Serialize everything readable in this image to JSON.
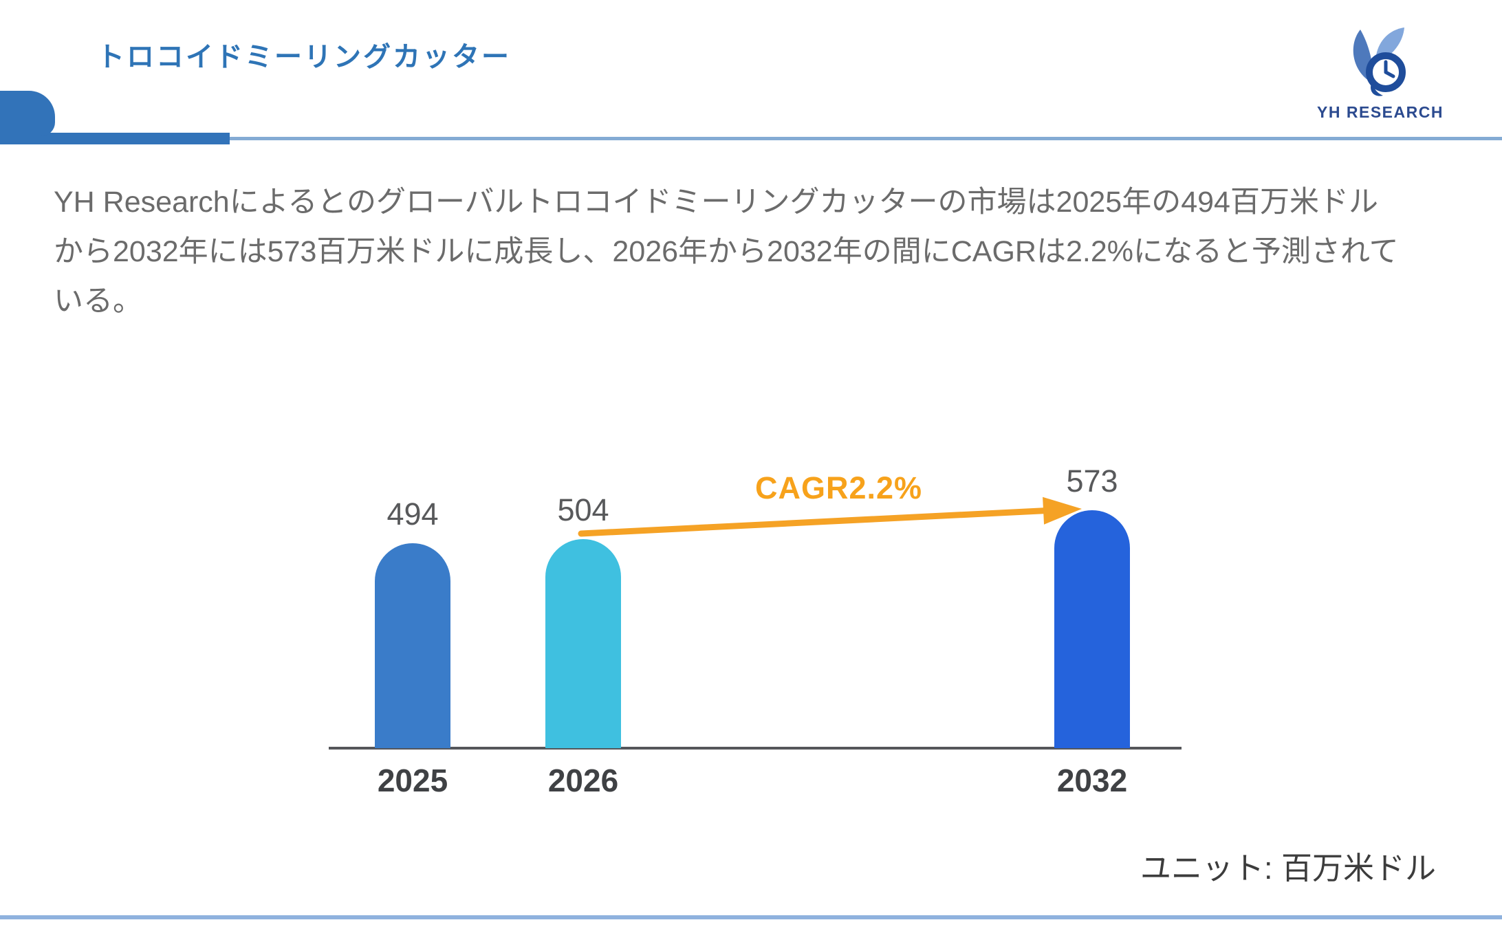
{
  "header": {
    "title": "トロコイドミーリングカッター",
    "logo_text": "YH RESEARCH"
  },
  "summary": {
    "text": "YH Researchによるとのグローバルトロコイドミーリングカッターの市場は2025年の494百万米ドルから2032年には573百万米ドルに成長し、2026年から2032年の間にCAGRは2.2%になると予測されている。"
  },
  "chart_data": {
    "type": "bar",
    "categories": [
      "2025",
      "2026",
      "2032"
    ],
    "values": [
      494,
      504,
      573
    ],
    "bar_colors": [
      "#3A7CC9",
      "#3FC0E0",
      "#2563DC"
    ],
    "annotation": "CAGR2.2%",
    "annotation_color": "#F7A21B",
    "arrow_color": "#F5A225",
    "unit_label": "ユニット: 百万米ドル",
    "title": "",
    "xlabel": "",
    "ylabel": "",
    "ylim": [
      0,
      600
    ],
    "grid": false,
    "legend": false,
    "baseline_color": "#55565A",
    "value_label_color": "#58595B"
  },
  "colors": {
    "title_blue": "#2E74B6",
    "rule_dark_blue": "#3273B9",
    "rule_light_blue": "#84ABD4",
    "footer_rule_blue": "#8FB2DE",
    "body_text_gray": "#6B6B6B",
    "logo_navy": "#2B4A8F"
  }
}
